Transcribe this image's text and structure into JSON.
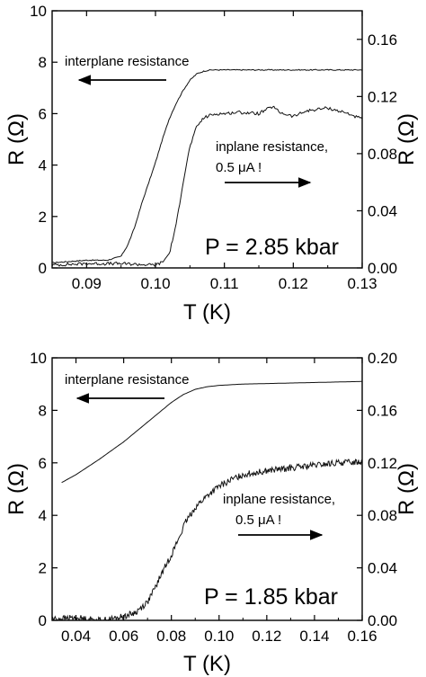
{
  "chart_data": [
    {
      "type": "line",
      "xlabel": "T (K)",
      "ylabel_left": "R (Ω)",
      "ylabel_right": "R (Ω)",
      "xlim": [
        0.085,
        0.13
      ],
      "ylim_left": [
        0,
        10
      ],
      "ylim_right": [
        0,
        0.18
      ],
      "xticks": [
        "0.09",
        "0.10",
        "0.11",
        "0.12",
        "0.13"
      ],
      "xtick_values": [
        0.09,
        0.1,
        0.11,
        0.12,
        0.13
      ],
      "yticks_left": [
        "0",
        "2",
        "4",
        "6",
        "8",
        "10"
      ],
      "ytick_values_left": [
        0,
        2,
        4,
        6,
        8,
        10
      ],
      "yticks_right": [
        "0.00",
        "0.04",
        "0.08",
        "0.12",
        "0.16"
      ],
      "ytick_values_right": [
        0,
        0.04,
        0.08,
        0.12,
        0.16
      ],
      "annotations": {
        "interplane": "interplane resistance",
        "inplane_1": "inplane resistance,",
        "inplane_2": "0.5 μA !",
        "pressure": "P = 2.85 kbar"
      },
      "series": [
        {
          "axis": "left",
          "x": [
            0.085,
            0.09,
            0.093,
            0.095,
            0.096,
            0.097,
            0.098,
            0.099,
            0.1,
            0.101,
            0.102,
            0.103,
            0.104,
            0.105,
            0.106,
            0.107,
            0.108,
            0.109,
            0.11,
            0.112,
            0.115,
            0.12,
            0.125,
            0.13
          ],
          "y": [
            0.2,
            0.3,
            0.3,
            0.45,
            0.9,
            1.6,
            2.5,
            3.3,
            4.1,
            5.0,
            5.8,
            6.4,
            6.9,
            7.3,
            7.55,
            7.65,
            7.7,
            7.7,
            7.7,
            7.7,
            7.7,
            7.7,
            7.7,
            7.7
          ]
        },
        {
          "axis": "right",
          "x": [
            0.085,
            0.09,
            0.095,
            0.1,
            0.101,
            0.102,
            0.103,
            0.104,
            0.105,
            0.106,
            0.107,
            0.108,
            0.109,
            0.11,
            0.112,
            0.115,
            0.117,
            0.118,
            0.12,
            0.122,
            0.125,
            0.128,
            0.13
          ],
          "y": [
            0.002,
            0.003,
            0.003,
            0.002,
            0.004,
            0.01,
            0.03,
            0.06,
            0.085,
            0.099,
            0.105,
            0.107,
            0.108,
            0.108,
            0.109,
            0.108,
            0.113,
            0.109,
            0.106,
            0.11,
            0.112,
            0.108,
            0.104
          ]
        }
      ]
    },
    {
      "type": "line",
      "xlabel": "T (K)",
      "ylabel_left": "R (Ω)",
      "ylabel_right": "R (Ω)",
      "xlim": [
        0.03,
        0.16
      ],
      "ylim_left": [
        0,
        10
      ],
      "ylim_right": [
        0,
        0.2
      ],
      "xticks": [
        "0.04",
        "0.06",
        "0.08",
        "0.10",
        "0.12",
        "0.14",
        "0.16"
      ],
      "xtick_values": [
        0.04,
        0.06,
        0.08,
        0.1,
        0.12,
        0.14,
        0.16
      ],
      "yticks_left": [
        "0",
        "2",
        "4",
        "6",
        "8",
        "10"
      ],
      "ytick_values_left": [
        0,
        2,
        4,
        6,
        8,
        10
      ],
      "yticks_right": [
        "0.00",
        "0.04",
        "0.08",
        "0.12",
        "0.16",
        "0.20"
      ],
      "ytick_values_right": [
        0,
        0.04,
        0.08,
        0.12,
        0.16,
        0.2
      ],
      "annotations": {
        "interplane": "interplane resistance",
        "inplane_1": "inplane resistance,",
        "inplane_2": "0.5 μA !",
        "pressure": "P = 1.85 kbar"
      },
      "series": [
        {
          "axis": "left",
          "x": [
            0.034,
            0.04,
            0.05,
            0.06,
            0.07,
            0.08,
            0.085,
            0.09,
            0.095,
            0.1,
            0.11,
            0.12,
            0.13,
            0.14,
            0.15,
            0.16
          ],
          "y": [
            5.25,
            5.55,
            6.15,
            6.8,
            7.55,
            8.3,
            8.6,
            8.8,
            8.9,
            8.95,
            9.0,
            9.02,
            9.04,
            9.06,
            9.08,
            9.1
          ],
          "smooth": true
        },
        {
          "axis": "right",
          "x": [
            0.03,
            0.04,
            0.05,
            0.055,
            0.06,
            0.065,
            0.07,
            0.073,
            0.076,
            0.08,
            0.083,
            0.086,
            0.09,
            0.095,
            0.1,
            0.105,
            0.11,
            0.12,
            0.13,
            0.14,
            0.15,
            0.16
          ],
          "y": [
            0.001,
            0.002,
            0.0,
            0.001,
            0.003,
            0.006,
            0.014,
            0.024,
            0.036,
            0.05,
            0.062,
            0.075,
            0.086,
            0.095,
            0.102,
            0.107,
            0.111,
            0.114,
            0.116,
            0.118,
            0.12,
            0.121
          ],
          "noisy": true
        }
      ]
    }
  ]
}
